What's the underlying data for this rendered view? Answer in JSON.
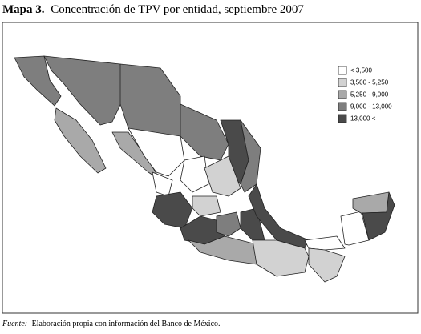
{
  "title": {
    "label": "Mapa 3.",
    "text": "Concentración de TPV por entidad, septiembre 2007"
  },
  "legend": {
    "items": [
      {
        "label": "< 3,500",
        "color": "#ffffff"
      },
      {
        "label": "3,500 - 5,250",
        "color": "#d2d2d2"
      },
      {
        "label": "5,250 - 9,000",
        "color": "#a9a9a9"
      },
      {
        "label": "9,000 - 13,000",
        "color": "#7e7e7e"
      },
      {
        "label": "13,000 <",
        "color": "#4a4a4a"
      }
    ]
  },
  "source": {
    "label": "Fuente:",
    "text": "Elaboración propia con información del Banco de México."
  }
}
